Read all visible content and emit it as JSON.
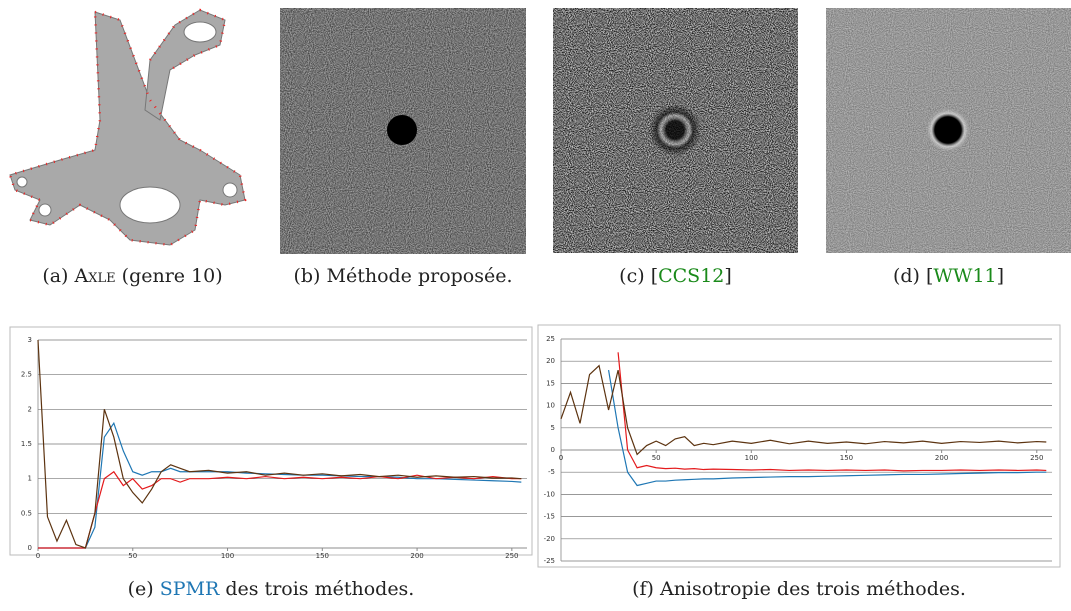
{
  "captions": [
    [
      "(a)",
      "Axle",
      "(genre 10)"
    ],
    [
      "(b)",
      "Méthode proposée."
    ],
    [
      "(c)",
      "[",
      "CCS12",
      "]"
    ],
    [
      "(d)",
      "[",
      "WW11",
      "]"
    ],
    [
      "(e)",
      "SPMR",
      "des trois méthodes."
    ],
    [
      "(f)",
      "Anisotropie des trois méthodes."
    ]
  ],
  "chart_data": [
    {
      "type": "line",
      "grid": true,
      "x": [
        0,
        5,
        10,
        15,
        20,
        25,
        30,
        35,
        40,
        45,
        50,
        55,
        60,
        65,
        70,
        75,
        80,
        90,
        100,
        110,
        120,
        130,
        140,
        150,
        160,
        170,
        180,
        190,
        200,
        210,
        220,
        230,
        240,
        250,
        255
      ],
      "xlim": [
        0,
        258
      ],
      "xticks": [
        0,
        50,
        100,
        150,
        200,
        250
      ],
      "ylim": [
        0,
        3
      ],
      "yticks": [
        0,
        0.5,
        1,
        1.5,
        2,
        2.5,
        3
      ],
      "series": [
        {
          "color": "#1f77b4",
          "values": [
            0,
            0,
            0,
            0,
            0,
            0,
            0.3,
            1.6,
            1.8,
            1.4,
            1.1,
            1.05,
            1.1,
            1.1,
            1.15,
            1.1,
            1.1,
            1.1,
            1.1,
            1.08,
            1.07,
            1.06,
            1.05,
            1.05,
            1.04,
            1.03,
            1.03,
            1.02,
            1.0,
            1.0,
            0.99,
            0.98,
            0.97,
            0.96,
            0.95
          ]
        },
        {
          "color": "#e41a1c",
          "values": [
            0,
            0,
            0,
            0,
            0,
            0,
            0.5,
            1.0,
            1.1,
            0.9,
            1.0,
            0.85,
            0.9,
            1.0,
            1.0,
            0.95,
            1.0,
            1.0,
            1.02,
            1.0,
            1.03,
            1.0,
            1.02,
            1.0,
            1.02,
            1.0,
            1.03,
            1.0,
            1.05,
            1.0,
            1.02,
            1.0,
            1.03,
            1.0,
            1.0
          ]
        },
        {
          "color": "#5c3310",
          "values": [
            3,
            0.45,
            0.1,
            0.4,
            0.05,
            0,
            0.5,
            2.0,
            1.6,
            1.0,
            0.8,
            0.65,
            0.85,
            1.1,
            1.2,
            1.15,
            1.1,
            1.12,
            1.08,
            1.1,
            1.05,
            1.08,
            1.05,
            1.07,
            1.04,
            1.06,
            1.03,
            1.05,
            1.02,
            1.04,
            1.02,
            1.03,
            1.01,
            1.01,
            1.0
          ]
        }
      ]
    },
    {
      "type": "line",
      "grid": true,
      "x": [
        0,
        5,
        10,
        15,
        20,
        25,
        30,
        35,
        40,
        45,
        50,
        55,
        60,
        65,
        70,
        75,
        80,
        90,
        100,
        110,
        120,
        130,
        140,
        150,
        160,
        170,
        180,
        190,
        200,
        210,
        220,
        230,
        240,
        250,
        255
      ],
      "xlim": [
        0,
        258
      ],
      "xticks": [
        0,
        50,
        100,
        150,
        200,
        250
      ],
      "ylim": [
        -25,
        25
      ],
      "yticks": [
        -25,
        -20,
        -15,
        -10,
        -5,
        0,
        5,
        10,
        15,
        20,
        25
      ],
      "series": [
        {
          "color": "#1f77b4",
          "values": [
            null,
            null,
            null,
            null,
            null,
            18,
            5,
            -5,
            -8,
            -7.5,
            -7,
            -7,
            -6.8,
            -6.7,
            -6.6,
            -6.5,
            -6.5,
            -6.3,
            -6.2,
            -6.1,
            -6,
            -6,
            -5.9,
            -5.8,
            -5.7,
            -5.6,
            -5.5,
            -5.5,
            -5.4,
            -5.3,
            -5.2,
            -5.1,
            -5.1,
            -5,
            -5
          ]
        },
        {
          "color": "#e41a1c",
          "values": [
            null,
            null,
            null,
            null,
            null,
            null,
            22,
            0,
            -4,
            -3.5,
            -4,
            -4.2,
            -4.1,
            -4.3,
            -4.2,
            -4.4,
            -4.3,
            -4.4,
            -4.5,
            -4.4,
            -4.6,
            -4.5,
            -4.6,
            -4.5,
            -4.6,
            -4.5,
            -4.7,
            -4.6,
            -4.6,
            -4.5,
            -4.6,
            -4.5,
            -4.6,
            -4.5,
            -4.6
          ]
        },
        {
          "color": "#5c3310",
          "values": [
            7,
            13,
            6,
            17,
            19,
            9,
            18,
            5,
            -1,
            1,
            2,
            1,
            2.5,
            3,
            1,
            1.5,
            1.2,
            2,
            1.5,
            2.2,
            1.4,
            2,
            1.5,
            1.8,
            1.4,
            1.9,
            1.6,
            2,
            1.5,
            1.9,
            1.7,
            2,
            1.6,
            1.9,
            1.8
          ]
        }
      ]
    }
  ]
}
